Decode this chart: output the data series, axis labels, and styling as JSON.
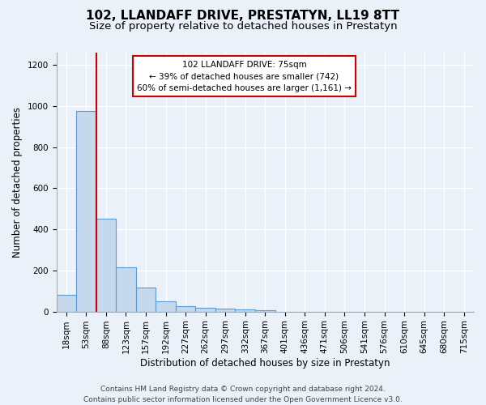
{
  "title": "102, LLANDAFF DRIVE, PRESTATYN, LL19 8TT",
  "subtitle": "Size of property relative to detached houses in Prestatyn",
  "xlabel": "Distribution of detached houses by size in Prestatyn",
  "ylabel": "Number of detached properties",
  "bin_labels": [
    "18sqm",
    "53sqm",
    "88sqm",
    "123sqm",
    "157sqm",
    "192sqm",
    "227sqm",
    "262sqm",
    "297sqm",
    "332sqm",
    "367sqm",
    "401sqm",
    "436sqm",
    "471sqm",
    "506sqm",
    "541sqm",
    "576sqm",
    "610sqm",
    "645sqm",
    "680sqm",
    "715sqm"
  ],
  "bar_heights": [
    80,
    975,
    450,
    215,
    115,
    50,
    25,
    20,
    15,
    10,
    5,
    0,
    0,
    0,
    0,
    0,
    0,
    0,
    0,
    0,
    0
  ],
  "bar_color": "#c5d8ec",
  "bar_edge_color": "#5b9bd5",
  "property_line_label": "102 LLANDAFF DRIVE: 75sqm",
  "annotation_line1": "← 39% of detached houses are smaller (742)",
  "annotation_line2": "60% of semi-detached houses are larger (1,161) →",
  "annotation_box_color": "#ffffff",
  "annotation_box_edge": "#cc0000",
  "red_line_color": "#cc0000",
  "red_line_x": 1.5,
  "ylim": [
    0,
    1260
  ],
  "yticks": [
    0,
    200,
    400,
    600,
    800,
    1000,
    1200
  ],
  "footer1": "Contains HM Land Registry data © Crown copyright and database right 2024.",
  "footer2": "Contains public sector information licensed under the Open Government Licence v3.0.",
  "bg_color": "#eaf1f8",
  "plot_bg_color": "#eaf1f8",
  "grid_color": "#ffffff",
  "title_fontsize": 11,
  "subtitle_fontsize": 9.5,
  "axis_label_fontsize": 8.5,
  "tick_fontsize": 7.5,
  "footer_fontsize": 6.5
}
